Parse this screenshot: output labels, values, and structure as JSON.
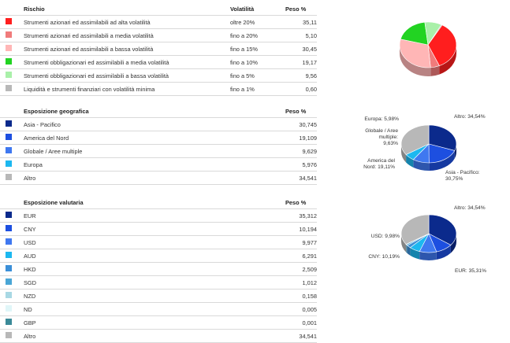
{
  "risk": {
    "headers": {
      "name": "Rischio",
      "vol": "Volatilità",
      "weight": "Peso %"
    },
    "rows": [
      {
        "color": "#ff1e1e",
        "name": "Strumenti azionari ed assimilabili ad alta volatilità",
        "vol": "oltre 20%",
        "weight": "35,11"
      },
      {
        "color": "#f07b7b",
        "name": "Strumenti azionari ed assimilabili a media volatilità",
        "vol": "fino a 20%",
        "weight": "5,10"
      },
      {
        "color": "#ffb6b6",
        "name": "Strumenti azionari ed assimilabili a bassa volatilità",
        "vol": "fino a 15%",
        "weight": "30,45"
      },
      {
        "color": "#22d322",
        "name": "Strumenti obbligazionari ed assimilabili a media volatilità",
        "vol": "fino a 10%",
        "weight": "19,17"
      },
      {
        "color": "#a9f0a9",
        "name": "Strumenti obbligazionari ed assimilabili a bassa volatilità",
        "vol": "fino a 5%",
        "weight": "9,56"
      },
      {
        "color": "#b8b8b8",
        "name": "Liquidità e strumenti finanziari con volatilità minima",
        "vol": "fino a 1%",
        "weight": "0,60"
      }
    ]
  },
  "geo": {
    "headers": {
      "name": "Esposizione geografica",
      "weight": "Peso %"
    },
    "rows": [
      {
        "color": "#0b2a8c",
        "name": "Asia - Pacifico",
        "weight": "30,745"
      },
      {
        "color": "#1d4fe0",
        "name": "America del Nord",
        "weight": "19,109"
      },
      {
        "color": "#3f78f0",
        "name": "Globale / Aree multiple",
        "weight": "9,629"
      },
      {
        "color": "#1cb8f0",
        "name": "Europa",
        "weight": "5,976"
      },
      {
        "color": "#b8b8b8",
        "name": "Altro",
        "weight": "34,541"
      }
    ]
  },
  "currency": {
    "headers": {
      "name": "Esposizione valutaria",
      "weight": "Peso %"
    },
    "rows": [
      {
        "color": "#0b2a8c",
        "name": "EUR",
        "weight": "35,312"
      },
      {
        "color": "#1d4fe0",
        "name": "CNY",
        "weight": "10,194"
      },
      {
        "color": "#3f78f0",
        "name": "USD",
        "weight": "9,977"
      },
      {
        "color": "#1cb8f0",
        "name": "AUD",
        "weight": "6,291"
      },
      {
        "color": "#3b8fd8",
        "name": "HKD",
        "weight": "2,509"
      },
      {
        "color": "#4aa6d6",
        "name": "SGD",
        "weight": "1,012"
      },
      {
        "color": "#a8d8e4",
        "name": "NZD",
        "weight": "0,158"
      },
      {
        "color": "#e0f6f8",
        "name": "ND",
        "weight": "0,005"
      },
      {
        "color": "#3b8a98",
        "name": "GBP",
        "weight": "0,001"
      },
      {
        "color": "#b8b8b8",
        "name": "Altro",
        "weight": "34,541"
      }
    ]
  },
  "chart_data": [
    {
      "type": "pie",
      "slices": [
        {
          "name": "Strumenti azionari ed assimilabili ad alta volatilità",
          "value": 35.11,
          "color": "#ff1e1e"
        },
        {
          "name": "Strumenti azionari ed assimilabili a media volatilità",
          "value": 5.1,
          "color": "#f07b7b"
        },
        {
          "name": "Strumenti azionari ed assimilabili a bassa volatilità",
          "value": 30.45,
          "color": "#ffb6b6"
        },
        {
          "name": "Strumenti obbligazionari ed assimilabili a media volatilità",
          "value": 19.17,
          "color": "#22d322"
        },
        {
          "name": "Strumenti obbligazionari ed assimilabili a bassa volatilità",
          "value": 9.56,
          "color": "#a9f0a9"
        },
        {
          "name": "Liquidità e strumenti finanziari con volatilità minima",
          "value": 0.6,
          "color": "#b8b8b8"
        }
      ],
      "labels": []
    },
    {
      "type": "pie",
      "slices": [
        {
          "name": "Asia - Pacifico",
          "value": 30.745,
          "color": "#0b2a8c"
        },
        {
          "name": "America del Nord",
          "value": 19.109,
          "color": "#1d4fe0"
        },
        {
          "name": "Globale / Aree multiple",
          "value": 9.629,
          "color": "#3f78f0"
        },
        {
          "name": "Europa",
          "value": 5.976,
          "color": "#1cb8f0"
        },
        {
          "name": "Altro",
          "value": 34.541,
          "color": "#b8b8b8"
        }
      ],
      "labels": [
        {
          "lines": [
            "Altro: 34,54%"
          ],
          "anchor": "start"
        },
        {
          "lines": [
            "Europa: 5,98%"
          ],
          "anchor": "end"
        },
        {
          "lines": [
            "Globale / Aree",
            "multiple:",
            "9,63%"
          ],
          "anchor": "end"
        },
        {
          "lines": [
            "America del",
            "Nord: 19,11%"
          ],
          "anchor": "end"
        },
        {
          "lines": [
            "Asia - Pacifico:",
            "30,75%"
          ],
          "anchor": "start"
        }
      ]
    },
    {
      "type": "pie",
      "slices": [
        {
          "name": "EUR",
          "value": 35.312,
          "color": "#0b2a8c"
        },
        {
          "name": "CNY",
          "value": 10.194,
          "color": "#1d4fe0"
        },
        {
          "name": "USD",
          "value": 9.977,
          "color": "#3f78f0"
        },
        {
          "name": "AUD",
          "value": 6.291,
          "color": "#1cb8f0"
        },
        {
          "name": "HKD",
          "value": 2.509,
          "color": "#3b8fd8"
        },
        {
          "name": "SGD",
          "value": 1.012,
          "color": "#4aa6d6"
        },
        {
          "name": "NZD",
          "value": 0.158,
          "color": "#a8d8e4"
        },
        {
          "name": "ND",
          "value": 0.005,
          "color": "#e0f6f8"
        },
        {
          "name": "GBP",
          "value": 0.001,
          "color": "#3b8a98"
        },
        {
          "name": "Altro",
          "value": 34.541,
          "color": "#b8b8b8"
        }
      ],
      "labels": [
        {
          "lines": [
            "Altro: 34,54%"
          ],
          "anchor": "start"
        },
        {
          "lines": [
            "USD: 9,98%"
          ],
          "anchor": "end"
        },
        {
          "lines": [
            "CNY: 10,19%"
          ],
          "anchor": "end"
        },
        {
          "lines": [
            "EUR: 35,31%"
          ],
          "anchor": "start"
        }
      ]
    }
  ]
}
